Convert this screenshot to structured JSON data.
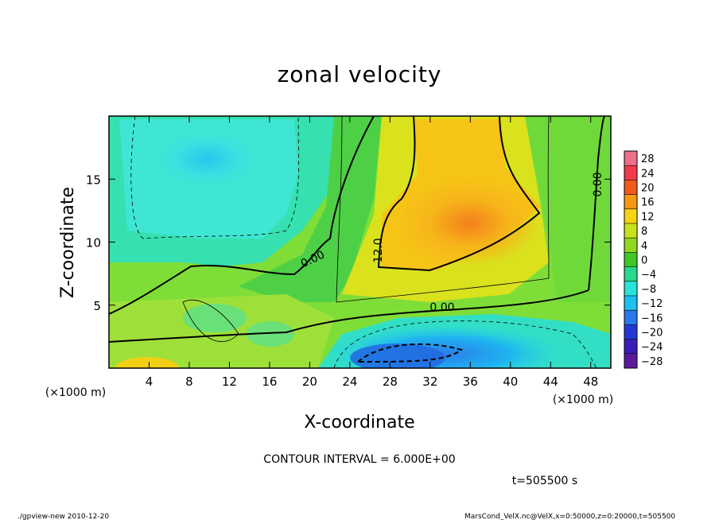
{
  "chart_data": {
    "type": "heatmap",
    "title": "zonal velocity",
    "xlabel": "X-coordinate",
    "ylabel": "Z-coordinate",
    "x_unit": "(×1000 m)",
    "y_unit": "(×1000 m)",
    "xlim": [
      0,
      50
    ],
    "ylim": [
      0,
      20
    ],
    "x_ticks": [
      4,
      8,
      12,
      16,
      20,
      24,
      28,
      32,
      36,
      40,
      44,
      48
    ],
    "y_ticks": [
      5,
      10,
      15
    ],
    "colorbar": {
      "levels": [
        28,
        24,
        20,
        16,
        12,
        8,
        4,
        0,
        -4,
        -8,
        -12,
        -16,
        -20,
        -24,
        -28
      ],
      "labels": [
        "28",
        "24",
        "20",
        "16",
        "12",
        "8",
        "4",
        "0",
        "−4",
        "−8",
        "−12",
        "−16",
        "−20",
        "−24",
        "−28"
      ],
      "colors": [
        "#ee6f8a",
        "#f23a4b",
        "#f25a1e",
        "#f49a12",
        "#f7d214",
        "#c7e31c",
        "#8ed81d",
        "#3fc72a",
        "#29d98a",
        "#28e3d8",
        "#1cc0f0",
        "#2a78ea",
        "#2238d6",
        "#3a1cb8",
        "#5c1a9a"
      ]
    },
    "contour_interval": "CONTOUR INTERVAL = 6.000E+00",
    "contour_labels": [
      "0.00",
      "12.0",
      "0.00",
      "0.00"
    ],
    "time": "t=505500 s"
  },
  "footer": {
    "left": "./gpview-new  2010-12-20",
    "right": "MarsCond_VelX.nc@VelX,x=0:50000,z=0:20000,t=505500"
  }
}
